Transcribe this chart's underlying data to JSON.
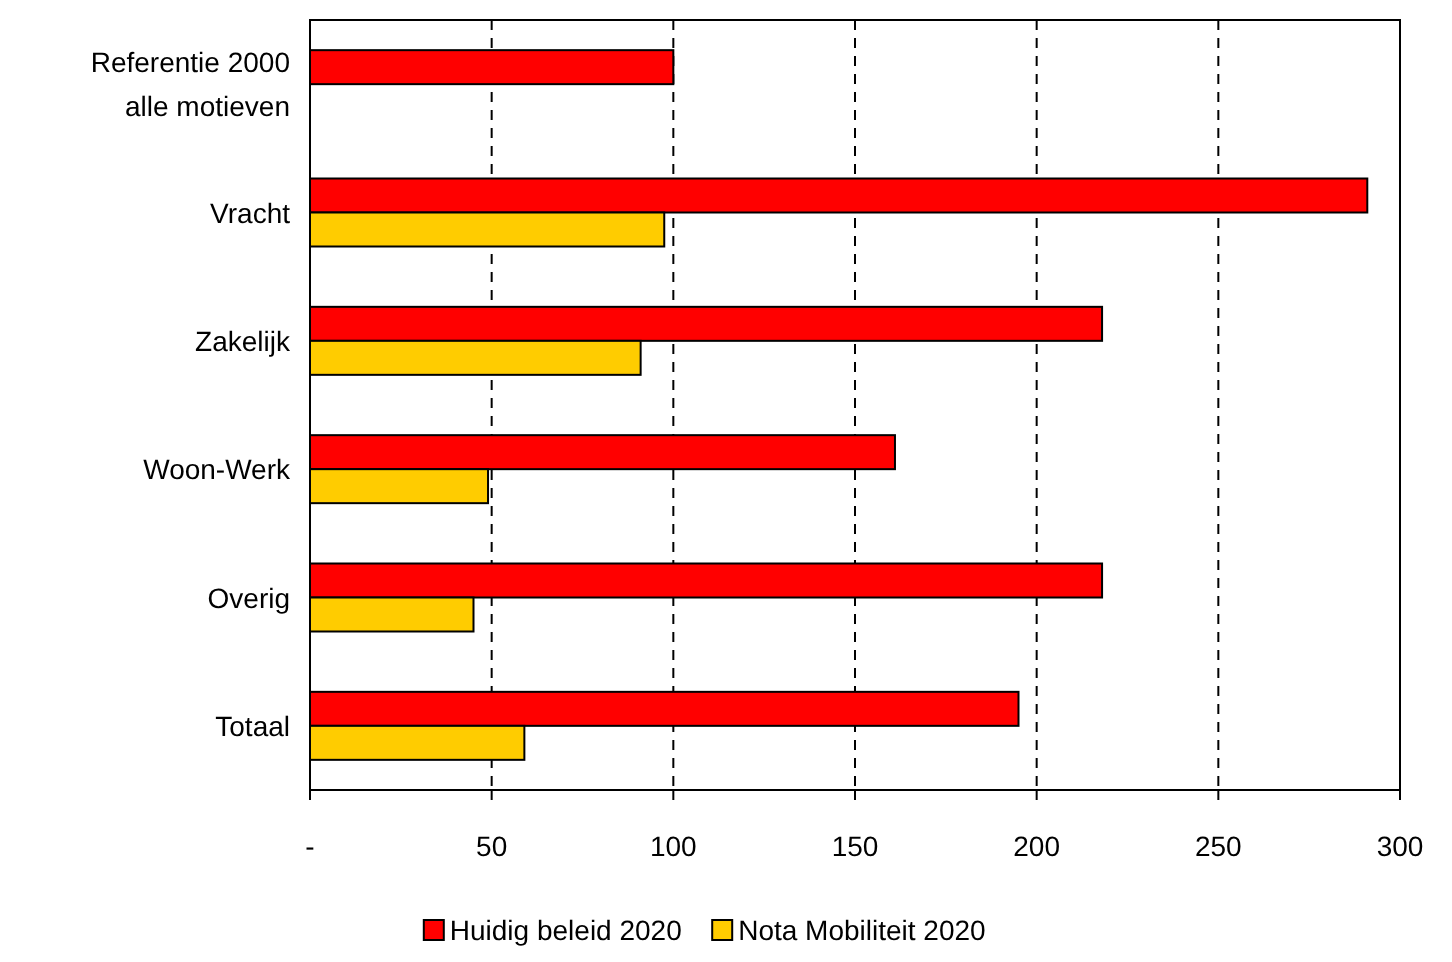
{
  "chart_data": {
    "type": "bar",
    "orientation": "horizontal",
    "categories": [
      "Referentie 2000 alle motieven",
      "Vracht",
      "Zakelijk",
      "Woon-Werk",
      "Overig",
      "Totaal"
    ],
    "series": [
      {
        "name": "Huidig beleid 2020",
        "color": "#ff0000",
        "values": [
          100,
          291,
          218,
          161,
          218,
          195
        ]
      },
      {
        "name": "Nota Mobiliteit 2020",
        "color": "#ffcc00",
        "values": [
          null,
          97.5,
          91,
          49,
          45,
          59
        ]
      }
    ],
    "xlim": [
      0,
      300
    ],
    "xticks": [
      {
        "value": 0,
        "label": "-"
      },
      50,
      100,
      150,
      200,
      250,
      300
    ],
    "grid": "x",
    "legend": "bottom"
  }
}
